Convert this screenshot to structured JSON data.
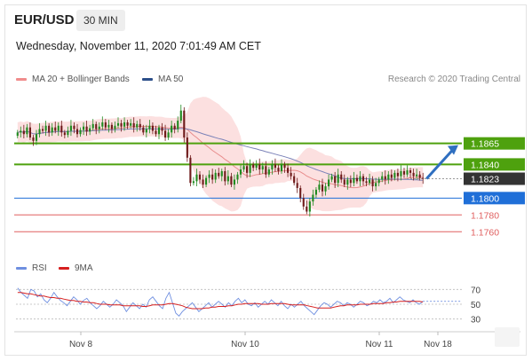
{
  "header": {
    "symbol": "EUR/USD",
    "timeframe": "30 MIN",
    "datetime": "Wednesday, November 11, 2020 7:01:49 AM CET"
  },
  "legend": {
    "ma20_bb": "MA 20 + Bollinger Bands",
    "ma50": "MA 50",
    "rsi": "RSI",
    "rsi_ma": "9MA"
  },
  "credit": "Research © 2020 Trading Central",
  "colors": {
    "up_candle": "#1f8a1f",
    "down_candle": "#6e1a1a",
    "bollinger_fill": "#fbd6d6",
    "ma20": "#e88c8c",
    "ma50": "#7b82b8",
    "green_level": "#4ea10e",
    "blue_level": "#1f6fd8",
    "red_level": "#e06060",
    "rsi": "#6f8fe0",
    "rsi_ma": "#d61f1f",
    "arrow": "#2f6fc0"
  },
  "chart_data": {
    "type": "candlestick",
    "x_labels": [
      "Nov 8",
      "Nov 10",
      "Nov 11",
      "Nov 18"
    ],
    "levels": [
      {
        "label": "1.1865",
        "value": 1.1865,
        "kind": "resistance",
        "color": "#4ea10e"
      },
      {
        "label": "1.1840",
        "value": 1.184,
        "kind": "resistance",
        "color": "#4ea10e"
      },
      {
        "label": "1.1823",
        "value": 1.1823,
        "kind": "last",
        "color": "#333333"
      },
      {
        "label": "1.1800",
        "value": 1.18,
        "kind": "pivot",
        "color": "#1f6fd8"
      },
      {
        "label": "1.1780",
        "value": 1.178,
        "kind": "support",
        "color": "#e06060"
      },
      {
        "label": "1.1760",
        "value": 1.176,
        "kind": "support",
        "color": "#e06060"
      }
    ],
    "ylim": [
      1.1735,
      1.193
    ],
    "closes": [
      1.1878,
      1.188,
      1.1876,
      1.1884,
      1.1872,
      1.1868,
      1.1876,
      1.1882,
      1.188,
      1.1886,
      1.1878,
      1.1884,
      1.188,
      1.1886,
      1.1878,
      1.1875,
      1.188,
      1.1886,
      1.1882,
      1.1876,
      1.1881,
      1.1885,
      1.1879,
      1.1883,
      1.1888,
      1.1882,
      1.1885,
      1.189,
      1.1884,
      1.1887,
      1.1882,
      1.1886,
      1.1889,
      1.1885,
      1.189,
      1.1886,
      1.1889,
      1.1884,
      1.1888,
      1.1884,
      1.1878,
      1.1882,
      1.1886,
      1.188,
      1.1876,
      1.1884,
      1.188,
      1.1872,
      1.1878,
      1.1886,
      1.1882,
      1.1892,
      1.1904,
      1.1872,
      1.1848,
      1.1818,
      1.182,
      1.1828,
      1.1822,
      1.1816,
      1.1824,
      1.1828,
      1.1822,
      1.183,
      1.1826,
      1.1832,
      1.182,
      1.1826,
      1.1816,
      1.1822,
      1.1828,
      1.1834,
      1.1838,
      1.183,
      1.184,
      1.1836,
      1.184,
      1.1834,
      1.1838,
      1.1828,
      1.1834,
      1.184,
      1.1836,
      1.1832,
      1.184,
      1.1836,
      1.183,
      1.1826,
      1.1818,
      1.1812,
      1.18,
      1.179,
      1.1784,
      1.1796,
      1.1804,
      1.181,
      1.1816,
      1.1808,
      1.1814,
      1.1822,
      1.1826,
      1.1818,
      1.1828,
      1.1822,
      1.1816,
      1.1822,
      1.1818,
      1.1824,
      1.182,
      1.1826,
      1.182,
      1.1818,
      1.1822,
      1.1814,
      1.1818,
      1.1822,
      1.1826,
      1.1822,
      1.1828,
      1.1824,
      1.183,
      1.1826,
      1.1832,
      1.1828,
      1.1833,
      1.183,
      1.1826,
      1.1828,
      1.1824,
      1.1823
    ],
    "arrow": {
      "from": 1.1823,
      "to": 1.1865
    },
    "rsi": {
      "levels": [
        70,
        50,
        30
      ],
      "ylim": [
        20,
        80
      ],
      "values": [
        72,
        66,
        62,
        58,
        70,
        68,
        60,
        64,
        56,
        52,
        58,
        66,
        60,
        55,
        52,
        48,
        54,
        60,
        56,
        50,
        55,
        58,
        52,
        48,
        44,
        48,
        54,
        50,
        46,
        50,
        56,
        52,
        48,
        40,
        46,
        52,
        48,
        44,
        50,
        46,
        56,
        60,
        54,
        48,
        44,
        58,
        66,
        52,
        38,
        34,
        40,
        44,
        48,
        52,
        46,
        40,
        44,
        48,
        52,
        46,
        50,
        54,
        50,
        46,
        52,
        48,
        54,
        58,
        52,
        56,
        50,
        48,
        52,
        46,
        50,
        54,
        50,
        56,
        52,
        48,
        54,
        48,
        44,
        50,
        46,
        50,
        54,
        48,
        44,
        40,
        36,
        42,
        48,
        52,
        50,
        46,
        50,
        54,
        52,
        48,
        52,
        50,
        46,
        50,
        54,
        52,
        48,
        50,
        54,
        52,
        56,
        52,
        54,
        58,
        52,
        56,
        60,
        56,
        54,
        52,
        56,
        52,
        50,
        54
      ],
      "ma_values": [
        66,
        66,
        65,
        64,
        64,
        63,
        62,
        61,
        61,
        60,
        59,
        59,
        58,
        58,
        57,
        56,
        55,
        55,
        54,
        54,
        53,
        53,
        52,
        52,
        51,
        50,
        50,
        50,
        49,
        49,
        49,
        49,
        48,
        48,
        48,
        48,
        48,
        48,
        47,
        47,
        48,
        49,
        49,
        49,
        49,
        50,
        51,
        51,
        50,
        49,
        48,
        46,
        45,
        44,
        44,
        44,
        44,
        45,
        45,
        46,
        46,
        47,
        47,
        47,
        48,
        48,
        49,
        50,
        50,
        51,
        51,
        51,
        51,
        51,
        50,
        50,
        50,
        51,
        51,
        51,
        51,
        51,
        50,
        49,
        49,
        49,
        49,
        49,
        48,
        47,
        46,
        45,
        45,
        45,
        45,
        45,
        46,
        47,
        48,
        48,
        49,
        49,
        49,
        49,
        50,
        50,
        50,
        50,
        51,
        51,
        51,
        51,
        52,
        52,
        53,
        53,
        54,
        54,
        54,
        54,
        54,
        54,
        54,
        53
      ]
    }
  }
}
